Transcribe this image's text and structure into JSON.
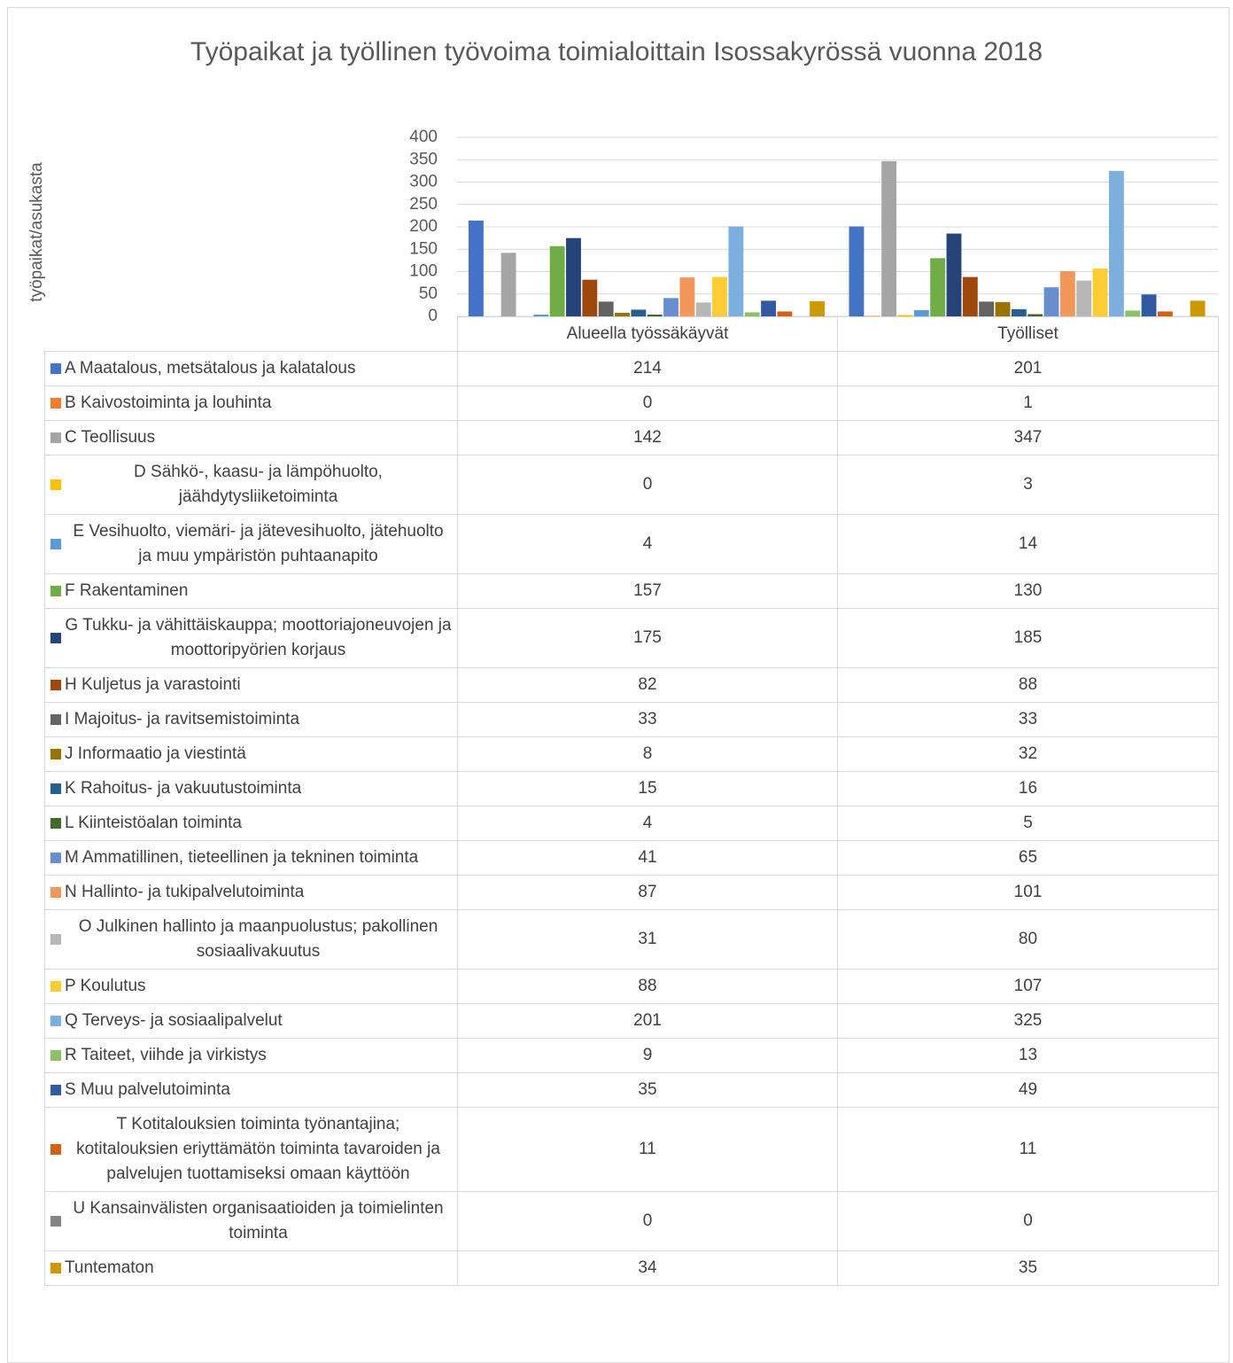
{
  "chart_data": {
    "type": "bar",
    "title": "Työpaikat ja työllinen työvoima toimialoittain Isossakyrössä vuonna 2018",
    "y_label": "työpaikat/asukasta",
    "categories": [
      "Alueella työssäkäyvät",
      "Työlliset"
    ],
    "ylim": [
      0,
      400
    ],
    "yticks": [
      0,
      50,
      100,
      150,
      200,
      250,
      300,
      350,
      400
    ],
    "grid": true,
    "series": [
      {
        "name": "A Maatalous, metsätalous ja kalatalous",
        "color": "#4472C4",
        "values": [
          214,
          201
        ]
      },
      {
        "name": "B Kaivostoiminta ja louhinta",
        "color": "#ED7D31",
        "values": [
          0,
          1
        ]
      },
      {
        "name": "C Teollisuus",
        "color": "#A5A5A5",
        "values": [
          142,
          347
        ]
      },
      {
        "name": "D Sähkö-, kaasu- ja lämpöhuolto, jäähdytysliiketoiminta",
        "color": "#FFC000",
        "values": [
          0,
          3
        ]
      },
      {
        "name": "E Vesihuolto, viemäri- ja jätevesihuolto, jätehuolto ja muu ympäristön puhtaanapito",
        "color": "#5B9BD5",
        "values": [
          4,
          14
        ]
      },
      {
        "name": "F Rakentaminen",
        "color": "#70AD47",
        "values": [
          157,
          130
        ]
      },
      {
        "name": "G Tukku- ja vähittäiskauppa; moottoriajoneuvojen ja moottoripyörien korjaus",
        "color": "#264478",
        "values": [
          175,
          185
        ]
      },
      {
        "name": "H Kuljetus ja varastointi",
        "color": "#9E480E",
        "values": [
          82,
          88
        ]
      },
      {
        "name": "I Majoitus- ja ravitsemistoiminta",
        "color": "#636363",
        "values": [
          33,
          33
        ]
      },
      {
        "name": "J Informaatio ja viestintä",
        "color": "#997300",
        "values": [
          8,
          32
        ]
      },
      {
        "name": "K Rahoitus- ja vakuutustoiminta",
        "color": "#255E91",
        "values": [
          15,
          16
        ]
      },
      {
        "name": "L Kiinteistöalan toiminta",
        "color": "#43682B",
        "values": [
          4,
          5
        ]
      },
      {
        "name": "M Ammatillinen, tieteellinen ja tekninen toiminta",
        "color": "#698ED0",
        "values": [
          41,
          65
        ]
      },
      {
        "name": "N Hallinto- ja tukipalvelutoiminta",
        "color": "#F1975A",
        "values": [
          87,
          101
        ]
      },
      {
        "name": "O Julkinen hallinto ja maanpuolustus; pakollinen sosiaalivakuutus",
        "color": "#B7B7B7",
        "values": [
          31,
          80
        ]
      },
      {
        "name": "P Koulutus",
        "color": "#FFCD33",
        "values": [
          88,
          107
        ]
      },
      {
        "name": "Q Terveys- ja sosiaalipalvelut",
        "color": "#7CAFDD",
        "values": [
          201,
          325
        ]
      },
      {
        "name": "R Taiteet, viihde ja virkistys",
        "color": "#8CC168",
        "values": [
          9,
          13
        ]
      },
      {
        "name": "S Muu palvelutoiminta",
        "color": "#335AA1",
        "values": [
          35,
          49
        ]
      },
      {
        "name": "T Kotitalouksien toiminta työnantajina; kotitalouksien eriyttämätön toiminta tavaroiden ja palvelujen tuottamiseksi omaan käyttöön",
        "color": "#D26012",
        "values": [
          11,
          11
        ]
      },
      {
        "name": "U Kansainvälisten organisaatioiden ja toimielinten toiminta",
        "color": "#848484",
        "values": [
          0,
          0
        ]
      },
      {
        "name": "Tuntematon",
        "color": "#CC9A00",
        "values": [
          34,
          35
        ]
      }
    ]
  }
}
